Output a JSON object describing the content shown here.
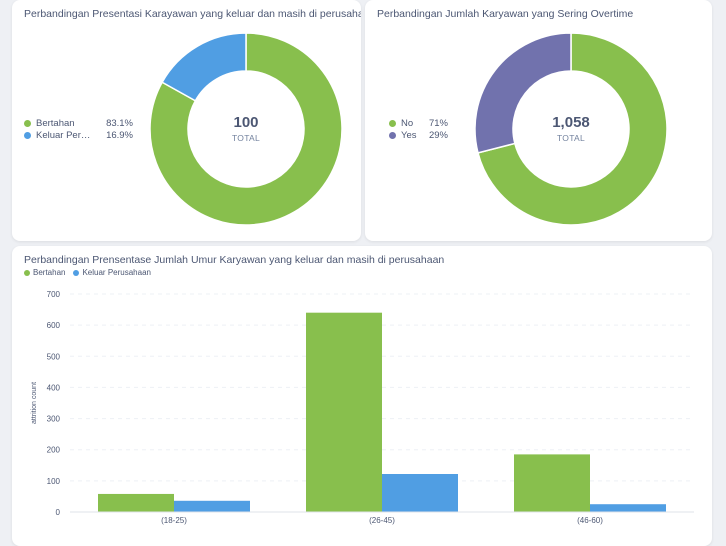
{
  "colors": {
    "green": "#88bf4d",
    "blue": "#509ee3",
    "purple": "#7172ad",
    "grid": "#edf0f5",
    "axis": "#4c5773"
  },
  "left_card": {
    "title": "Perbandingan Presentasi Karayawan yang keluar dan masih di perusahaan",
    "total_value": "100",
    "total_label": "TOTAL",
    "legend": [
      {
        "name": "Bertahan",
        "value": "83.1%",
        "color": "#88bf4d"
      },
      {
        "name": "Keluar Perusahaan",
        "value": "16.9%",
        "color": "#509ee3"
      }
    ]
  },
  "right_card": {
    "title": "Perbandingan Jumlah Karyawan yang Sering Overtime",
    "total_value": "1,058",
    "total_label": "TOTAL",
    "legend": [
      {
        "name": "No",
        "value": "71%",
        "color": "#88bf4d"
      },
      {
        "name": "Yes",
        "value": "29%",
        "color": "#7172ad"
      }
    ]
  },
  "bottom_card": {
    "title": "Perbandingan Prensentase Jumlah Umur Karyawan yang keluar dan masih di perusahaan"
  },
  "chart_data": [
    {
      "type": "pie",
      "title": "Perbandingan Presentasi Karayawan yang keluar dan masih di perusahaan",
      "categories": [
        "Bertahan",
        "Keluar Perusahaan"
      ],
      "values": [
        83.1,
        16.9
      ],
      "total": 100,
      "legend": "left"
    },
    {
      "type": "pie",
      "title": "Perbandingan Jumlah Karyawan yang Sering Overtime",
      "categories": [
        "No",
        "Yes"
      ],
      "values": [
        71,
        29
      ],
      "total": 1058,
      "legend": "left"
    },
    {
      "type": "bar",
      "title": "Perbandingan Prensentase Jumlah Umur Karyawan yang keluar dan masih di perusahaan",
      "categories": [
        "(18-25)",
        "(26-45)",
        "(46-60)"
      ],
      "series": [
        {
          "name": "Bertahan",
          "values": [
            58,
            640,
            185
          ],
          "color": "#88bf4d"
        },
        {
          "name": "Keluar Perusahaan",
          "values": [
            36,
            122,
            25
          ],
          "color": "#509ee3"
        }
      ],
      "ylabel": "attrition count",
      "ylim": [
        0,
        700
      ],
      "yticks": [
        0,
        100,
        200,
        300,
        400,
        500,
        600,
        700
      ],
      "grid": true,
      "legend": "top-left"
    }
  ]
}
